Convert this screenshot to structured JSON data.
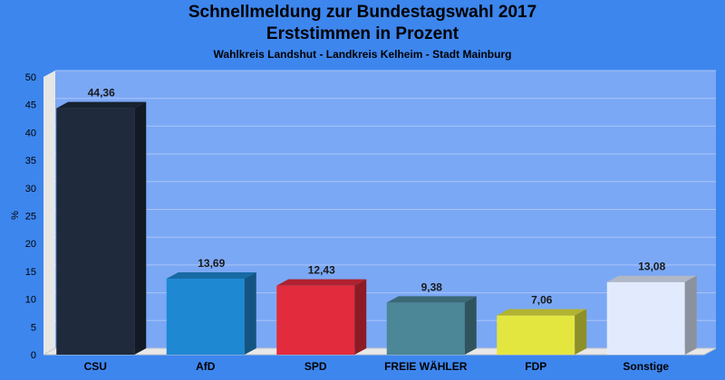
{
  "chart_data": {
    "type": "bar",
    "title": "Schnellmeldung zur Bundestagswahl 2017",
    "subtitle_line": "Erststimmen in Prozent",
    "subtitle": "Wahlkreis Landshut - Landkreis Kelheim - Stadt Mainburg",
    "ylabel": "%",
    "xlabel": "",
    "ylim": [
      0,
      50
    ],
    "yticks": [
      "0",
      "5",
      "10",
      "15",
      "20",
      "25",
      "30",
      "35",
      "40",
      "45",
      "50"
    ],
    "categories": [
      "CSU",
      "AfD",
      "SPD",
      "FREIE WÄHLER",
      "FDP",
      "Sonstige"
    ],
    "values": [
      44.36,
      13.69,
      12.43,
      9.38,
      7.06,
      13.08
    ],
    "value_labels": [
      "44,36",
      "13,69",
      "12,43",
      "9,38",
      "7,06",
      "13,08"
    ],
    "colors": [
      "#1f2a3c",
      "#1f88d2",
      "#e22b3c",
      "#4b8797",
      "#e4e640",
      "#e2ebfd"
    ],
    "grid": true,
    "legend": "none"
  },
  "colors": {
    "background": "#3d86ee",
    "plot_area": "#7ba8f5",
    "floor": "#e8e8e8",
    "grid": "#a9c4f7"
  }
}
